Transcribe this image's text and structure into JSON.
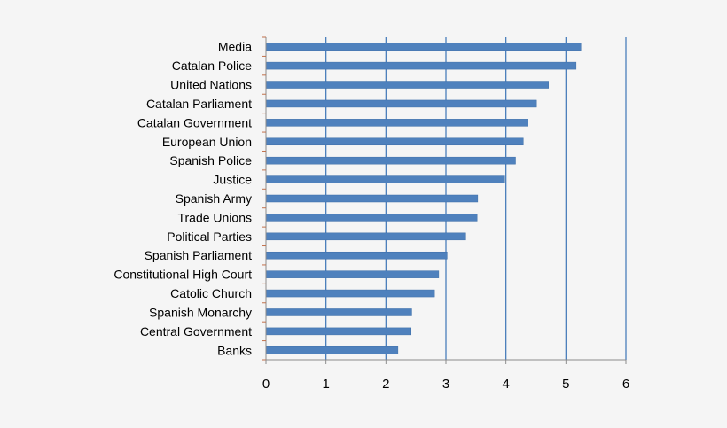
{
  "chart_data": {
    "type": "bar",
    "orientation": "horizontal",
    "categories": [
      "Media",
      "Catalan Police",
      "United Nations",
      "Catalan Parliament",
      "Catalan Government",
      "European Union",
      "Spanish Police",
      "Justice",
      "Spanish Army",
      "Trade Unions",
      "Political Parties",
      "Spanish Parliament",
      "Constitutional High Court",
      "Catolic Church",
      "Spanish Monarchy",
      "Central Government",
      "Banks"
    ],
    "values": [
      5.25,
      5.17,
      4.71,
      4.51,
      4.37,
      4.29,
      4.16,
      3.98,
      3.53,
      3.52,
      3.33,
      3.02,
      2.88,
      2.81,
      2.43,
      2.42,
      2.2
    ],
    "xlim": [
      0,
      6
    ],
    "xticks": [
      "0",
      "1",
      "2",
      "3",
      "4",
      "5",
      "6"
    ],
    "grid": "vertical",
    "bar_color": "#4f81bd",
    "grid_color": "#4a7ebb",
    "title": "",
    "xlabel": "",
    "ylabel": ""
  }
}
